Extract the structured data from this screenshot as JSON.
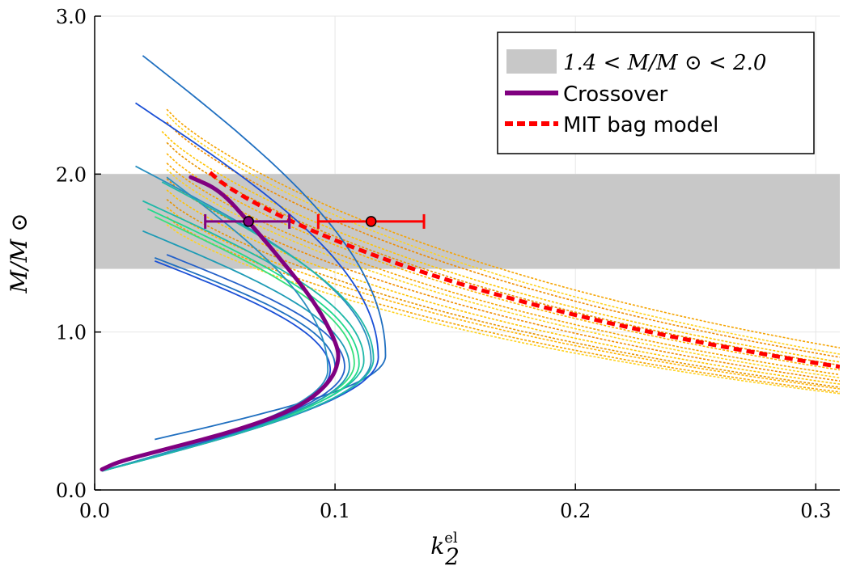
{
  "chart_data": {
    "type": "line",
    "xlabel": "k",
    "xlabel_sub": "2",
    "xlabel_sup": "el",
    "ylabel": "M/M ⊙",
    "xlim": [
      0.0,
      0.31
    ],
    "ylim": [
      0.0,
      3.0
    ],
    "xticks": [
      0.0,
      0.1,
      0.2,
      0.3
    ],
    "xtick_labels": [
      "0.0",
      "0.1",
      "0.2",
      "0.3"
    ],
    "yticks": [
      0.0,
      1.0,
      2.0,
      3.0
    ],
    "ytick_labels": [
      "0.0",
      "1.0",
      "2.0",
      "3.0"
    ],
    "grid": true,
    "legend_position": "top-right",
    "band": {
      "name": "1.4 < M/M ⊙ < 2.0",
      "y_min": 1.4,
      "y_max": 2.0,
      "color": "#c8c8c8"
    },
    "legend": [
      {
        "label": "1.4 < M/M ⊙ < 2.0",
        "kind": "band",
        "color": "#c8c8c8"
      },
      {
        "label": "Crossover",
        "kind": "solid",
        "color": "#800080"
      },
      {
        "label": "MIT bag model",
        "kind": "dashed",
        "color": "#ff0000"
      }
    ],
    "crossover_family": {
      "style": "solid",
      "colors": [
        "#1f6fc0",
        "#1a4fd6",
        "#2a8fbf",
        "#1fb8a8",
        "#20d98c",
        "#36e07c",
        "#1d9bb5",
        "#2561c9"
      ],
      "curves": [
        {
          "k2_peak": 0.121,
          "m_peak": 0.85,
          "k2_top": 0.02,
          "m_top": 2.75,
          "k2_low": 0.025,
          "m_low": 0.32
        },
        {
          "k2_peak": 0.118,
          "m_peak": 0.84,
          "k2_top": 0.017,
          "m_top": 2.45,
          "k2_low": 0.003,
          "m_low": 0.12
        },
        {
          "k2_peak": 0.115,
          "m_peak": 0.82,
          "k2_top": 0.017,
          "m_top": 2.05,
          "k2_low": 0.003,
          "m_low": 0.12
        },
        {
          "k2_peak": 0.112,
          "m_peak": 0.82,
          "k2_top": 0.02,
          "m_top": 1.83,
          "k2_low": 0.003,
          "m_low": 0.12
        },
        {
          "k2_peak": 0.11,
          "m_peak": 0.8,
          "k2_top": 0.022,
          "m_top": 1.78,
          "k2_low": 0.003,
          "m_low": 0.12
        },
        {
          "k2_peak": 0.108,
          "m_peak": 0.8,
          "k2_top": 0.025,
          "m_top": 1.73,
          "k2_low": 0.003,
          "m_low": 0.12
        },
        {
          "k2_peak": 0.106,
          "m_peak": 0.78,
          "k2_top": 0.02,
          "m_top": 1.64,
          "k2_low": 0.003,
          "m_low": 0.12
        },
        {
          "k2_peak": 0.104,
          "m_peak": 0.78,
          "k2_top": 0.03,
          "m_top": 1.49,
          "k2_low": 0.003,
          "m_low": 0.12
        },
        {
          "k2_peak": 0.1,
          "m_peak": 0.78,
          "k2_top": 0.025,
          "m_top": 1.47,
          "k2_low": 0.003,
          "m_low": 0.12
        },
        {
          "k2_peak": 0.098,
          "m_peak": 0.76,
          "k2_top": 0.025,
          "m_top": 1.45,
          "k2_low": 0.003,
          "m_low": 0.12
        },
        {
          "k2_peak": 0.097,
          "m_peak": 0.76,
          "k2_top": 0.03,
          "m_top": 1.98,
          "k2_low": 0.003,
          "m_low": 0.12
        },
        {
          "k2_peak": 0.116,
          "m_peak": 0.83,
          "k2_top": 0.028,
          "m_top": 1.95,
          "k2_low": 0.003,
          "m_low": 0.12
        }
      ]
    },
    "crossover_highlight": {
      "name": "Crossover",
      "color": "#800080",
      "points": [
        [
          0.04,
          1.98
        ],
        [
          0.052,
          1.9
        ],
        [
          0.064,
          1.7
        ],
        [
          0.078,
          1.45
        ],
        [
          0.092,
          1.18
        ],
        [
          0.1,
          0.95
        ],
        [
          0.102,
          0.83
        ],
        [
          0.098,
          0.68
        ],
        [
          0.085,
          0.52
        ],
        [
          0.06,
          0.38
        ],
        [
          0.03,
          0.26
        ],
        [
          0.01,
          0.18
        ],
        [
          0.003,
          0.13
        ]
      ]
    },
    "mit_family": {
      "style": "dotted",
      "colors": [
        "#f5a300",
        "#ffd21f",
        "#f08c00",
        "#ffc400",
        "#e89400",
        "#ffb300"
      ],
      "curves": [
        {
          "k2_start": 0.03,
          "m_start": 2.41,
          "m_end": 0.9
        },
        {
          "k2_start": 0.03,
          "m_start": 2.38,
          "m_end": 0.86
        },
        {
          "k2_start": 0.03,
          "m_start": 2.33,
          "m_end": 0.84
        },
        {
          "k2_start": 0.028,
          "m_start": 2.27,
          "m_end": 0.81
        },
        {
          "k2_start": 0.03,
          "m_start": 2.2,
          "m_end": 0.79
        },
        {
          "k2_start": 0.03,
          "m_start": 2.13,
          "m_end": 0.76
        },
        {
          "k2_start": 0.03,
          "m_start": 2.07,
          "m_end": 0.73
        },
        {
          "k2_start": 0.03,
          "m_start": 2.03,
          "m_end": 0.71
        },
        {
          "k2_start": 0.03,
          "m_start": 1.97,
          "m_end": 0.69
        },
        {
          "k2_start": 0.03,
          "m_start": 1.9,
          "m_end": 0.67
        },
        {
          "k2_start": 0.03,
          "m_start": 1.84,
          "m_end": 0.65
        },
        {
          "k2_start": 0.03,
          "m_start": 1.79,
          "m_end": 0.64
        },
        {
          "k2_start": 0.03,
          "m_start": 1.73,
          "m_end": 0.62
        },
        {
          "k2_start": 0.03,
          "m_start": 1.68,
          "m_end": 0.61
        }
      ]
    },
    "mit_highlight": {
      "name": "MIT bag model",
      "color": "#ff0000",
      "k2_start": 0.048,
      "m_start": 2.01,
      "m_end": 0.78
    },
    "error_points": [
      {
        "series": "Crossover",
        "x": 0.064,
        "y": 1.7,
        "xerr_low": 0.046,
        "xerr_high": 0.081,
        "color": "#800080"
      },
      {
        "series": "MIT bag model",
        "x": 0.115,
        "y": 1.7,
        "xerr_low": 0.093,
        "xerr_high": 0.137,
        "color": "#ff0000"
      }
    ]
  }
}
